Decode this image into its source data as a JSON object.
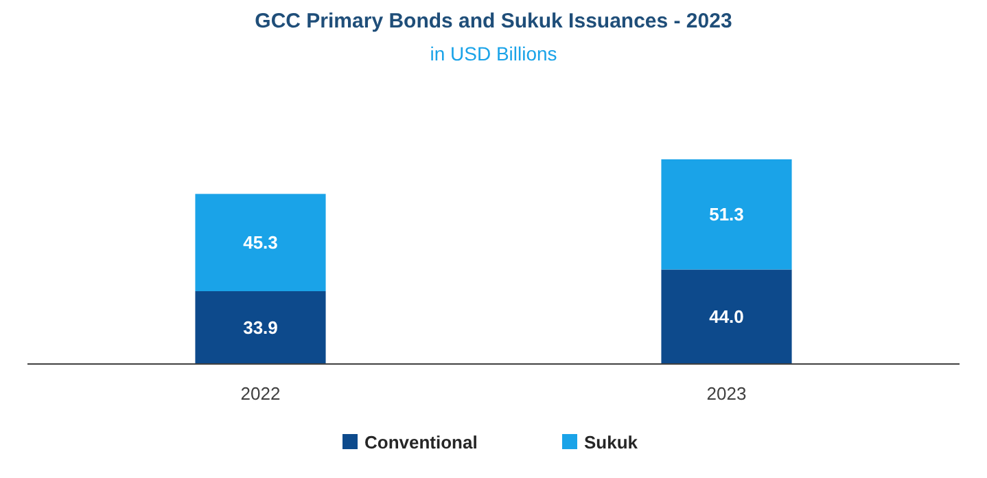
{
  "chart_data": {
    "type": "bar",
    "title": "GCC Primary Bonds and Sukuk Issuances - 2023",
    "subtitle": "in USD Billions",
    "categories": [
      "2022",
      "2023"
    ],
    "stacked": true,
    "legend": "bottom",
    "series": [
      {
        "name": "Conventional",
        "color": "#0d4a8c",
        "values": [
          33.9,
          44.0
        ],
        "value_labels": [
          "33.9",
          "44.0"
        ]
      },
      {
        "name": "Sukuk",
        "color": "#1aa3e8",
        "values": [
          45.3,
          51.3
        ],
        "value_labels": [
          "45.3",
          "51.3"
        ]
      }
    ]
  }
}
